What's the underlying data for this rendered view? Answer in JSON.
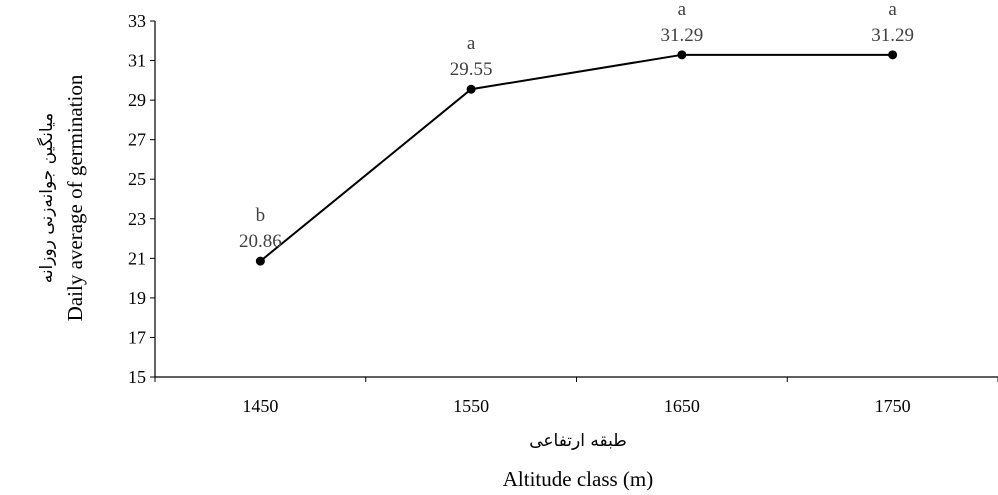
{
  "chart_data": {
    "type": "line",
    "categories": [
      "1450",
      "1550",
      "1650",
      "1750"
    ],
    "series": [
      {
        "values": [
          20.86,
          29.55,
          31.29,
          31.29
        ],
        "value_labels": [
          "20.86",
          "29.55",
          "31.29",
          "31.29"
        ],
        "group_letters": [
          "b",
          "a",
          "a",
          "a"
        ],
        "color": "#000000"
      }
    ],
    "xlabel": "Altitude class (m)",
    "xlabel_fa": "طبقه ارتفاعی",
    "ylabel": "Daily average of germination",
    "ylabel_fa": "میانگین جوانه‌زنی روزانه",
    "ylim": [
      15,
      33
    ],
    "yticks": [
      "15",
      "17",
      "19",
      "21",
      "23",
      "25",
      "27",
      "29",
      "31",
      "33"
    ],
    "grid": false,
    "legend": "none"
  }
}
